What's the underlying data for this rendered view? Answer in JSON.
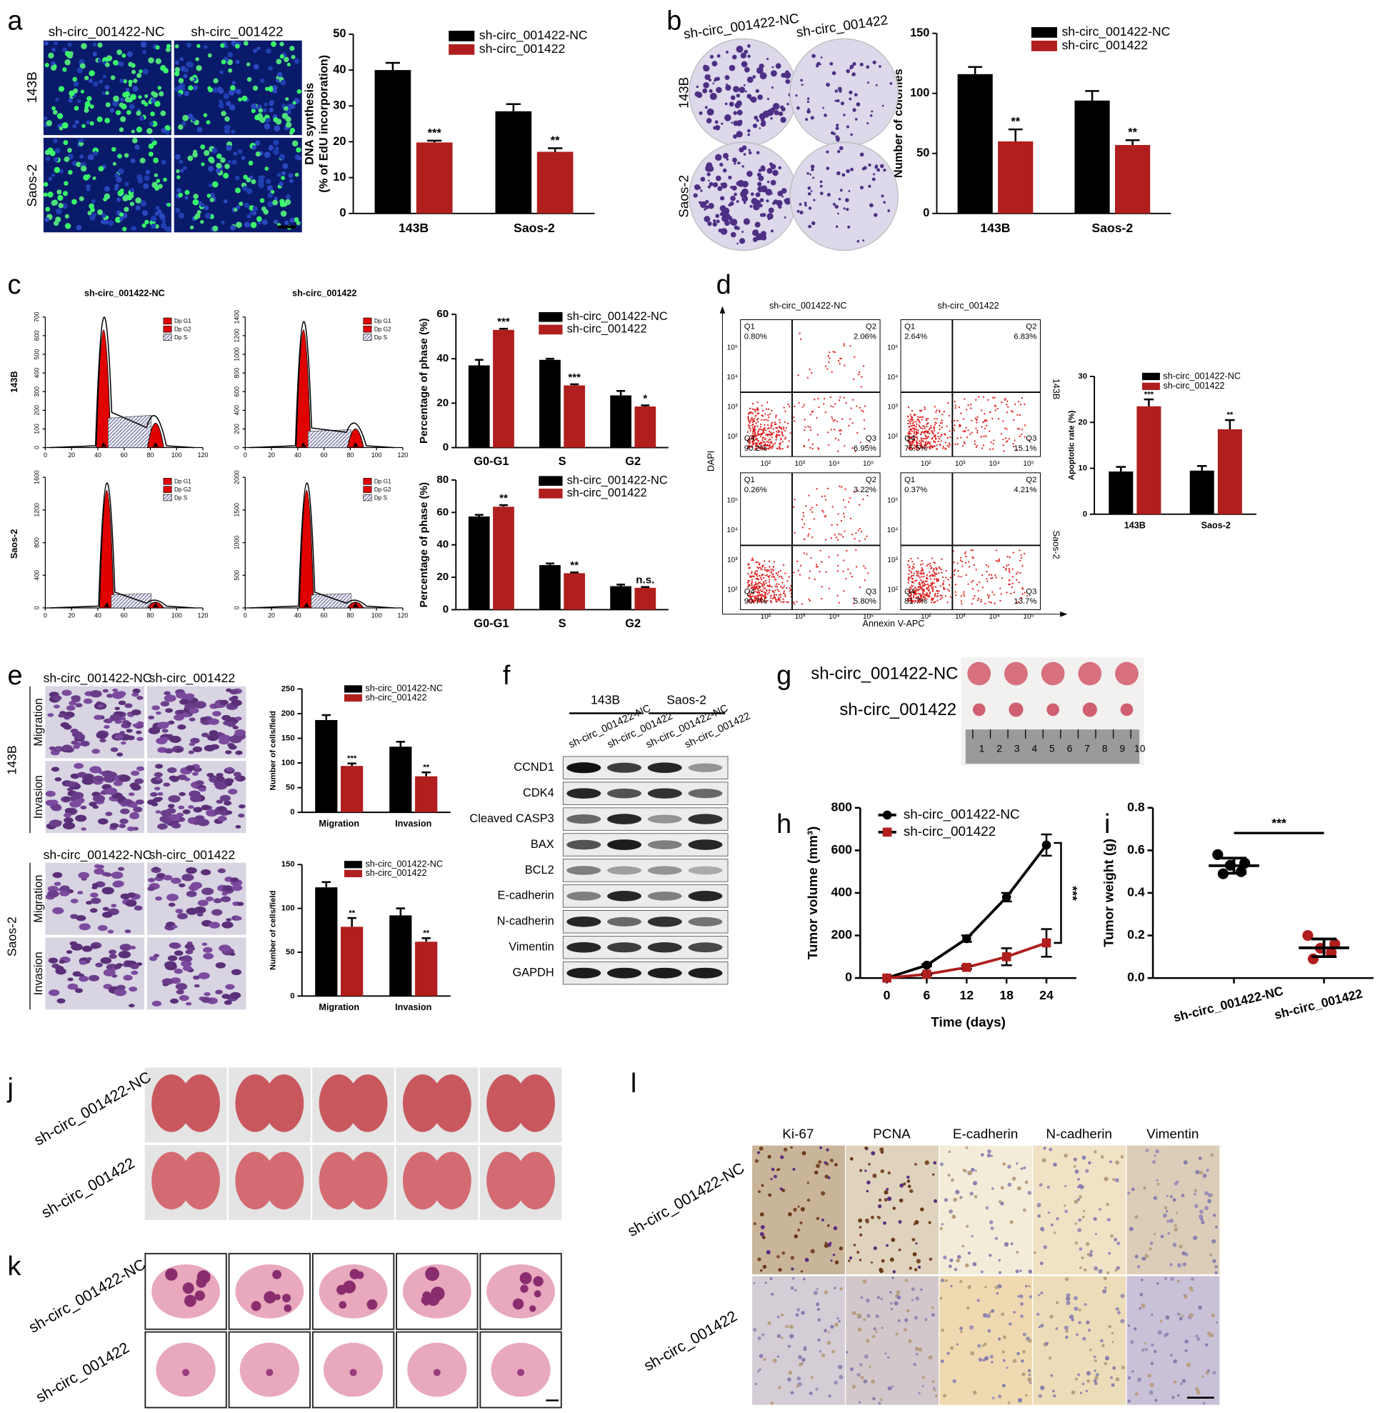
{
  "panel_letters": [
    "a",
    "b",
    "c",
    "d",
    "e",
    "f",
    "g",
    "h",
    "i",
    "j",
    "k",
    "l"
  ],
  "chart_data": [
    {
      "type": "bar",
      "panel": "a",
      "categories": [
        "143B",
        "Saos-2"
      ],
      "ylabel": [
        "DNA synthesis",
        "(% of EdU incorporation)"
      ],
      "ylim": [
        0,
        50
      ],
      "yticks": [
        0,
        10,
        20,
        30,
        40,
        50
      ],
      "series": [
        {
          "name": "sh-circ_001422-NC",
          "color": "#000000",
          "values": [
            40,
            28.5
          ],
          "errors": [
            2,
            2
          ]
        },
        {
          "name": "sh-circ_001422",
          "color": "#b01e1e",
          "values": [
            19.8,
            17.2
          ],
          "errors": [
            0.5,
            1
          ],
          "annotations": [
            "***",
            "**"
          ]
        }
      ]
    },
    {
      "type": "bar",
      "panel": "b",
      "categories": [
        "143B",
        "Saos-2"
      ],
      "ylabel": [
        "Number of colonies"
      ],
      "ylim": [
        0,
        150
      ],
      "yticks": [
        0,
        50,
        100,
        150
      ],
      "series": [
        {
          "name": "sh-circ_001422-NC",
          "color": "#000000",
          "values": [
            116,
            94
          ],
          "errors": [
            6,
            8
          ]
        },
        {
          "name": "sh-circ_001422",
          "color": "#b01e1e",
          "values": [
            60,
            57
          ],
          "errors": [
            10,
            4
          ],
          "annotations": [
            "**",
            "**"
          ]
        }
      ]
    },
    {
      "type": "bar",
      "panel": "c",
      "categories": [
        "G0-G1",
        "S",
        "G2"
      ],
      "ylabel": [
        "Percentage of phase (%)"
      ],
      "ylim": [
        0,
        60
      ],
      "yticks": [
        0,
        20,
        40,
        60
      ],
      "series": [
        {
          "name": "sh-circ_001422-NC",
          "color": "#000000",
          "values": [
            37,
            39.5,
            23.5
          ],
          "errors": [
            2.5,
            0.5,
            2
          ]
        },
        {
          "name": "sh-circ_001422",
          "color": "#b01e1e",
          "values": [
            53,
            28,
            18.5
          ],
          "errors": [
            0.5,
            0.5,
            0.5
          ],
          "annotations": [
            "***",
            "***",
            "*"
          ]
        }
      ]
    },
    {
      "type": "bar",
      "panel": "c",
      "categories": [
        "G0-G1",
        "S",
        "G2"
      ],
      "ylabel": [
        "Percentage of phase (%)"
      ],
      "ylim": [
        0,
        80
      ],
      "yticks": [
        0,
        20,
        40,
        60,
        80
      ],
      "series": [
        {
          "name": "sh-circ_001422-NC",
          "color": "#000000",
          "values": [
            57.5,
            27.5,
            14.5
          ],
          "errors": [
            1,
            1,
            1
          ]
        },
        {
          "name": "sh-circ_001422",
          "color": "#b01e1e",
          "values": [
            63.5,
            22.5,
            13.5
          ],
          "errors": [
            1,
            0.5,
            0.5
          ],
          "annotations": [
            "**",
            "**",
            "n.s."
          ]
        }
      ]
    },
    {
      "type": "bar",
      "panel": "d",
      "categories": [
        "143B",
        "Saos-2"
      ],
      "ylabel": [
        "Apoptotic rate (%)"
      ],
      "ylim": [
        0,
        30
      ],
      "yticks": [
        0,
        10,
        20,
        30
      ],
      "series": [
        {
          "name": "sh-circ_001422-NC",
          "color": "#000000",
          "values": [
            9.3,
            9.5
          ],
          "errors": [
            1,
            1
          ]
        },
        {
          "name": "sh-circ_001422",
          "color": "#b01e1e",
          "values": [
            23.5,
            18.5
          ],
          "errors": [
            1.5,
            2
          ],
          "annotations": [
            "***",
            "**"
          ]
        }
      ]
    },
    {
      "type": "bar",
      "panel": "e",
      "categories": [
        "Migration",
        "Invasion"
      ],
      "ylabel": [
        "Number of cells/field"
      ],
      "ylim": [
        0,
        250
      ],
      "yticks": [
        0,
        50,
        100,
        150,
        200,
        250
      ],
      "series": [
        {
          "name": "sh-circ_001422-NC",
          "color": "#000000",
          "values": [
            187,
            133
          ],
          "errors": [
            10,
            10
          ]
        },
        {
          "name": "sh-circ_001422",
          "color": "#b01e1e",
          "values": [
            94,
            73
          ],
          "errors": [
            5,
            8
          ],
          "annotations": [
            "***",
            "**"
          ]
        }
      ]
    },
    {
      "type": "bar",
      "panel": "e",
      "categories": [
        "Migration",
        "Invasion"
      ],
      "ylabel": [
        "Number of cells/field"
      ],
      "ylim": [
        0,
        150
      ],
      "yticks": [
        0,
        50,
        100,
        150
      ],
      "series": [
        {
          "name": "sh-circ_001422-NC",
          "color": "#000000",
          "values": [
            124,
            92
          ],
          "errors": [
            6,
            8
          ]
        },
        {
          "name": "sh-circ_001422",
          "color": "#b01e1e",
          "values": [
            79,
            62
          ],
          "errors": [
            10,
            4
          ],
          "annotations": [
            "**",
            "**"
          ]
        }
      ]
    },
    {
      "type": "line",
      "panel": "h",
      "x": [
        0,
        6,
        12,
        18,
        24
      ],
      "xlabel": "Time (days)",
      "ylabel": "Tumor volume (mm³)",
      "xlim": [
        -4,
        28.5
      ],
      "xticks": [
        0,
        6,
        12,
        18,
        24
      ],
      "ylim": [
        0,
        800
      ],
      "yticks": [
        0,
        200,
        400,
        600,
        800
      ],
      "annotation": "***",
      "series": [
        {
          "name": "sh-circ_001422-NC",
          "color": "#000000",
          "values": [
            0,
            60,
            185,
            380,
            625
          ],
          "errors": [
            0,
            5,
            15,
            20,
            50
          ]
        },
        {
          "name": "sh-circ_001422",
          "color": "#b01e1e",
          "values": [
            0,
            18,
            50,
            100,
            165
          ],
          "errors": [
            0,
            5,
            8,
            40,
            65
          ]
        }
      ]
    },
    {
      "type": "strip",
      "panel": "i",
      "categories": [
        "sh-circ_001422-NC",
        "sh-circ_001422"
      ],
      "colors": [
        "#000000",
        "#b01e1e"
      ],
      "ylabel": "Tumor weight (g)",
      "ylim": [
        0,
        0.8
      ],
      "yticks": [
        {
          "value": 0,
          "label": "0.0"
        },
        0.2,
        0.4,
        0.6,
        0.8
      ],
      "annotation": "***",
      "values": [
        [
          0.58,
          0.54,
          0.53,
          0.5,
          0.49
        ],
        [
          0.2,
          0.16,
          0.14,
          0.12,
          0.09
        ]
      ]
    }
  ],
  "images": {
    "a": {
      "columns": [
        "sh-circ_001422-NC",
        "sh-circ_001422"
      ],
      "rows": [
        "143B",
        "Saos-2"
      ]
    },
    "b": {
      "columns": [
        "sh-circ_001422-NC",
        "sh-circ_001422"
      ],
      "rows": [
        "143B",
        "Saos-2"
      ]
    },
    "c": {
      "columns": [
        "sh-circ_001422-NC",
        "sh-circ_001422"
      ],
      "rows": [
        "143B",
        "Saos-2"
      ],
      "legend": [
        "Dp G1",
        "Dp G2",
        "Dp S"
      ],
      "xticks": [
        0,
        20,
        40,
        60,
        80,
        100,
        120
      ],
      "yticks": [
        [
          0,
          100,
          200,
          300,
          400,
          500,
          600,
          700
        ],
        [
          0,
          200,
          400,
          600,
          800,
          1000,
          1200,
          1400
        ],
        [
          0,
          400,
          800,
          1200,
          1600
        ],
        [
          0,
          500,
          1000,
          1500,
          2000
        ]
      ]
    },
    "d": {
      "columns": [
        "sh-circ_001422-NC",
        "sh-circ_001422"
      ],
      "rows": [
        "143B",
        "Saos-2"
      ],
      "xlabel": "Annexin V-APC",
      "ylabel": "DAPI",
      "quadrants": [
        "Q1",
        "Q2",
        "Q3",
        "Q4"
      ],
      "ticks": [
        "10²",
        "10³",
        "10⁴",
        "10⁵"
      ],
      "percentages": [
        [
          "0.80%",
          "2.06%",
          "6.95%",
          "90.2%"
        ],
        [
          "2.64%",
          "6.83%",
          "15.1%",
          "75.5%"
        ],
        [
          "0.26%",
          "3.22%",
          "5.80%",
          "90.7%"
        ],
        [
          "0.37%",
          "4.21%",
          "13.7%",
          "81.7%"
        ]
      ]
    },
    "e": {
      "columns": [
        "sh-circ_001422-NC",
        "sh-circ_001422"
      ],
      "rows": [
        "143B",
        "Saos-2"
      ],
      "subrows": [
        "Migration",
        "Invasion"
      ]
    },
    "f": {
      "cells": [
        "143B",
        "Saos-2"
      ],
      "lanes": [
        "sh-circ_001422-NC",
        "sh-circ_001422",
        "sh-circ_001422-NC",
        "sh-circ_001422"
      ],
      "proteins": [
        "CCND1",
        "CDK4",
        "Cleaved CASP3",
        "BAX",
        "BCL2",
        "E-cadherin",
        "N-cadherin",
        "Vimentin",
        "GAPDH"
      ]
    },
    "g": {
      "rows": [
        "sh-circ_001422-NC",
        "sh-circ_001422"
      ],
      "ruler": [
        1,
        2,
        3,
        4,
        5,
        6,
        7,
        8,
        9,
        10
      ]
    },
    "j": {
      "rows": [
        "sh-circ_001422-NC",
        "sh-circ_001422"
      ]
    },
    "k": {
      "rows": [
        "sh-circ_001422-NC",
        "sh-circ_001422"
      ]
    },
    "l": {
      "columns": [
        "Ki-67",
        "PCNA",
        "E-cadherin",
        "N-cadherin",
        "Vimentin"
      ],
      "rows": [
        "sh-circ_001422-NC",
        "sh-circ_001422"
      ]
    }
  }
}
